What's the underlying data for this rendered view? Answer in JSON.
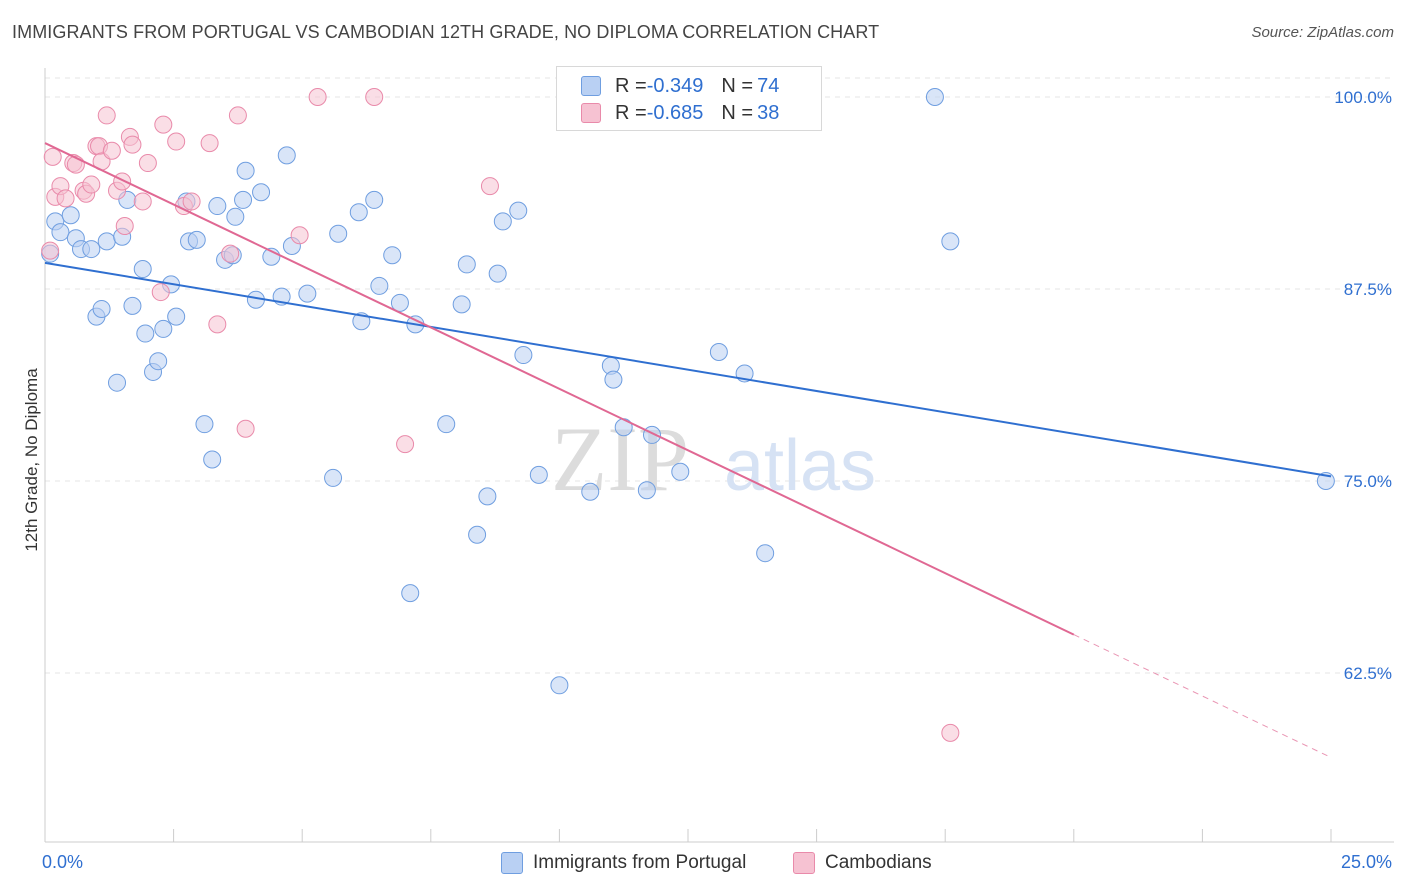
{
  "header": {
    "title": "IMMIGRANTS FROM PORTUGAL VS CAMBODIAN 12TH GRADE, NO DIPLOMA CORRELATION CHART",
    "source": "Source: ZipAtlas.com"
  },
  "watermark": {
    "zip": "ZIP",
    "atlas": "atlas"
  },
  "legend": {
    "rows": [
      {
        "r_label": "R = ",
        "r_value": "-0.349",
        "n_label": "N = ",
        "n_value": "74"
      },
      {
        "r_label": "R = ",
        "r_value": "-0.685",
        "n_label": "N = ",
        "n_value": "38"
      }
    ]
  },
  "colors": {
    "blue_fill": "#b9d0f3",
    "blue_stroke": "#6f9ee0",
    "blue_line": "#2f6fd0",
    "pink_fill": "#f6c2d2",
    "pink_stroke": "#e98aaa",
    "pink_line": "#e06893",
    "axis_label": "#2f6fd0",
    "grid": "#e6e6e6"
  },
  "chart_data": {
    "type": "scatter",
    "title": "IMMIGRANTS FROM PORTUGAL VS CAMBODIAN 12TH GRADE, NO DIPLOMA CORRELATION CHART",
    "xlabel": "",
    "ylabel": "12th Grade, No Diploma",
    "xlim": [
      0,
      25
    ],
    "ylim": [
      50,
      102
    ],
    "x_tick_labels": [
      "0.0%",
      "25.0%"
    ],
    "y_ticks": [
      62.5,
      75.0,
      87.5,
      100.0
    ],
    "y_tick_labels": [
      "62.5%",
      "75.0%",
      "87.5%",
      "100.0%"
    ],
    "grid": true,
    "legend_position": "bottom",
    "series": [
      {
        "name": "Immigrants from Portugal",
        "color": "#6f9ee0",
        "trend": {
          "x": [
            0,
            25
          ],
          "y": [
            89.2,
            75.3
          ],
          "extrapolated_to": 25
        },
        "points": [
          [
            0.1,
            89.8
          ],
          [
            0.2,
            91.9
          ],
          [
            0.3,
            91.2
          ],
          [
            0.5,
            92.3
          ],
          [
            0.6,
            90.8
          ],
          [
            0.7,
            90.1
          ],
          [
            0.9,
            90.1
          ],
          [
            1.0,
            85.7
          ],
          [
            1.1,
            86.2
          ],
          [
            1.2,
            90.6
          ],
          [
            1.4,
            81.4
          ],
          [
            1.5,
            90.9
          ],
          [
            1.6,
            93.3
          ],
          [
            1.7,
            86.4
          ],
          [
            1.9,
            88.8
          ],
          [
            1.95,
            84.6
          ],
          [
            2.1,
            82.1
          ],
          [
            2.2,
            82.8
          ],
          [
            2.3,
            84.9
          ],
          [
            2.45,
            87.8
          ],
          [
            2.55,
            85.7
          ],
          [
            2.75,
            93.2
          ],
          [
            2.8,
            90.6
          ],
          [
            2.95,
            90.7
          ],
          [
            3.1,
            78.7
          ],
          [
            3.25,
            76.4
          ],
          [
            3.35,
            92.9
          ],
          [
            3.5,
            89.4
          ],
          [
            3.65,
            89.7
          ],
          [
            3.7,
            92.2
          ],
          [
            3.85,
            93.3
          ],
          [
            3.9,
            95.2
          ],
          [
            4.1,
            86.8
          ],
          [
            4.2,
            93.8
          ],
          [
            4.4,
            89.6
          ],
          [
            4.6,
            87.0
          ],
          [
            4.7,
            96.2
          ],
          [
            4.8,
            90.3
          ],
          [
            5.1,
            87.2
          ],
          [
            5.6,
            75.2
          ],
          [
            5.7,
            91.1
          ],
          [
            6.1,
            92.5
          ],
          [
            6.15,
            85.4
          ],
          [
            6.4,
            93.3
          ],
          [
            6.5,
            87.7
          ],
          [
            6.75,
            89.7
          ],
          [
            6.9,
            86.6
          ],
          [
            7.1,
            67.7
          ],
          [
            7.2,
            85.2
          ],
          [
            7.8,
            78.7
          ],
          [
            8.1,
            86.5
          ],
          [
            8.2,
            89.1
          ],
          [
            8.4,
            71.5
          ],
          [
            8.6,
            74.0
          ],
          [
            8.8,
            88.5
          ],
          [
            8.9,
            91.9
          ],
          [
            9.2,
            92.6
          ],
          [
            9.3,
            83.2
          ],
          [
            9.6,
            75.4
          ],
          [
            10.0,
            61.7
          ],
          [
            10.6,
            74.3
          ],
          [
            11.0,
            82.5
          ],
          [
            11.05,
            81.6
          ],
          [
            11.25,
            78.5
          ],
          [
            11.7,
            74.4
          ],
          [
            11.8,
            78.0
          ],
          [
            12.35,
            75.6
          ],
          [
            13.1,
            83.4
          ],
          [
            13.6,
            82.0
          ],
          [
            14.0,
            70.3
          ],
          [
            14.4,
            100.0
          ],
          [
            17.3,
            100.0
          ],
          [
            17.6,
            90.6
          ],
          [
            24.9,
            75.0
          ]
        ]
      },
      {
        "name": "Cambodians",
        "color": "#e98aaa",
        "trend": {
          "x": [
            0,
            20
          ],
          "y": [
            97.0,
            65.0
          ],
          "extrapolated_to": 25
        },
        "points": [
          [
            0.1,
            90.0
          ],
          [
            0.2,
            93.5
          ],
          [
            0.3,
            94.2
          ],
          [
            0.4,
            93.4
          ],
          [
            0.55,
            95.7
          ],
          [
            0.6,
            95.6
          ],
          [
            0.75,
            93.9
          ],
          [
            0.8,
            93.7
          ],
          [
            0.9,
            94.3
          ],
          [
            1.0,
            96.8
          ],
          [
            1.05,
            96.8
          ],
          [
            1.1,
            95.8
          ],
          [
            1.2,
            98.8
          ],
          [
            1.3,
            96.5
          ],
          [
            1.4,
            93.9
          ],
          [
            1.5,
            94.5
          ],
          [
            1.55,
            91.6
          ],
          [
            1.65,
            97.4
          ],
          [
            1.7,
            96.9
          ],
          [
            1.9,
            93.2
          ],
          [
            2.0,
            95.7
          ],
          [
            2.25,
            87.3
          ],
          [
            2.3,
            98.2
          ],
          [
            2.55,
            97.1
          ],
          [
            2.7,
            92.9
          ],
          [
            2.85,
            93.2
          ],
          [
            3.2,
            97.0
          ],
          [
            3.35,
            85.2
          ],
          [
            3.6,
            89.8
          ],
          [
            3.75,
            98.8
          ],
          [
            3.9,
            78.4
          ],
          [
            4.95,
            91.0
          ],
          [
            5.3,
            100.0
          ],
          [
            6.4,
            100.0
          ],
          [
            7.0,
            77.4
          ],
          [
            8.65,
            94.2
          ],
          [
            17.6,
            58.6
          ],
          [
            0.15,
            96.1
          ]
        ]
      }
    ]
  }
}
